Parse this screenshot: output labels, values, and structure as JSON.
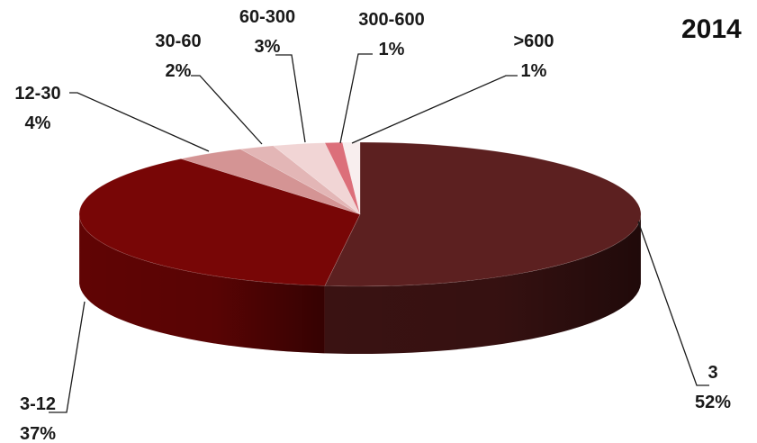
{
  "chart_data": {
    "type": "pie",
    "style": "3d",
    "title": "2014",
    "legend": "none",
    "slices": [
      {
        "name": "3",
        "percent": 52,
        "label": "52%",
        "color": "#5c2020",
        "side": "#3a1212"
      },
      {
        "name": "3-12",
        "percent": 37,
        "label": "37%",
        "color": "#780606",
        "side": "#600404"
      },
      {
        "name": "12-30",
        "percent": 4,
        "label": "4%",
        "color": "#d49494",
        "side": "#b07474"
      },
      {
        "name": "30-60",
        "percent": 2,
        "label": "2%",
        "color": "#e3b6b6",
        "side": "#c69999"
      },
      {
        "name": "60-300",
        "percent": 3,
        "label": "3%",
        "color": "#f1d5d5",
        "side": "#d6b9b9"
      },
      {
        "name": "300-600",
        "percent": 1,
        "label": "1%",
        "color": "#dc6f7a",
        "side": "#bf5661"
      },
      {
        "name": ">600",
        "percent": 1,
        "label": "1%",
        "color": "#f8eeee",
        "side": "#ddd2d2"
      }
    ]
  }
}
